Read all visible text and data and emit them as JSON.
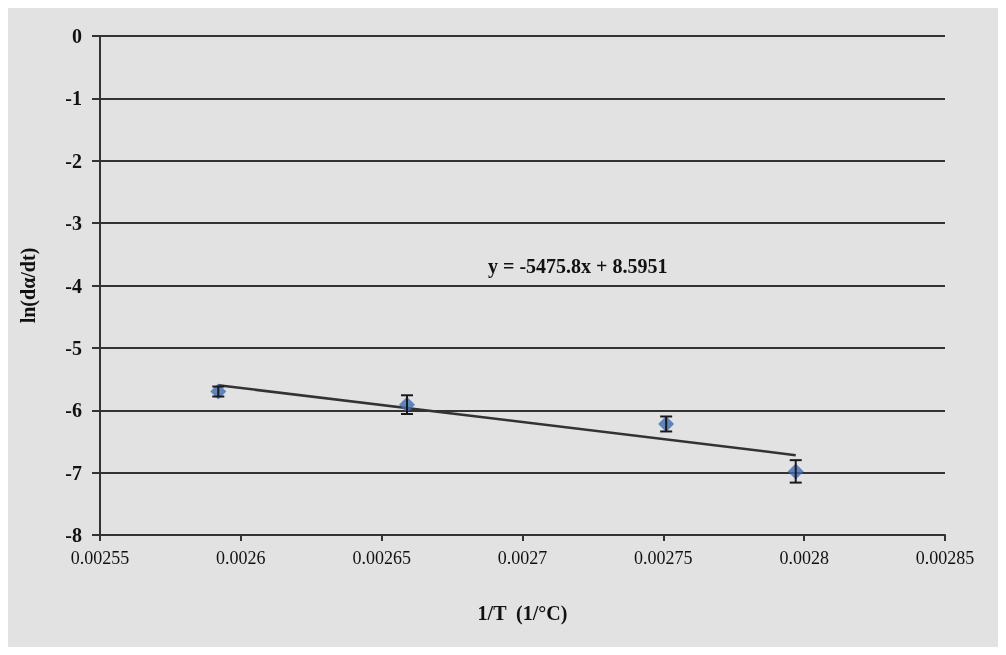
{
  "chart_data": {
    "type": "scatter",
    "xlabel": "1/T  (1/°C)",
    "ylabel": "ln(dα/dt)",
    "marker": "diamond",
    "grid": "y",
    "legend": false,
    "xlim": [
      0.00255,
      0.00285
    ],
    "xticks": [
      0.00255,
      0.0026,
      0.00265,
      0.0027,
      0.00275,
      0.0028,
      0.00285
    ],
    "ylim": [
      -8,
      0
    ],
    "yticks": [
      -8,
      -7,
      -6,
      -5,
      -4,
      -3,
      -2,
      -1,
      0
    ],
    "annotations": [
      "y = -5475.8x + 8.5951"
    ],
    "series": [
      {
        "color": "#3f6db3",
        "x": [
          0.002592,
          0.002659,
          0.002751,
          0.002797
        ],
        "values": [
          -5.7,
          -5.91,
          -6.22,
          -6.98
        ],
        "errors": [
          0.08,
          0.15,
          0.12,
          0.18
        ]
      },
      {
        "type": "line",
        "color": "#333333",
        "line_style": "solid",
        "marker": "none",
        "x": [
          0.002592,
          0.002797
        ],
        "values": [
          -5.6,
          -6.72
        ]
      }
    ]
  }
}
